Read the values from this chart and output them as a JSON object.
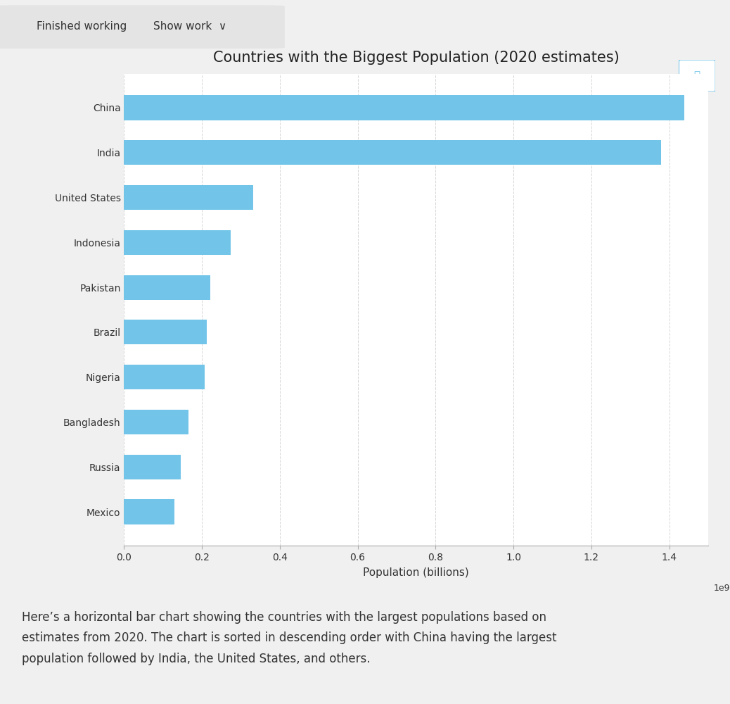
{
  "title": "Countries with the Biggest Population (2020 estimates)",
  "xlabel": "Population (billions)",
  "countries": [
    "Mexico",
    "Russia",
    "Bangladesh",
    "Nigeria",
    "Brazil",
    "Pakistan",
    "Indonesia",
    "United States",
    "India",
    "China"
  ],
  "populations": [
    128932753,
    145934462,
    164689383,
    206139589,
    212559417,
    220892340,
    273523615,
    331002651,
    1380004385,
    1439323776
  ],
  "bar_color": "#72c5e8",
  "chart_bg": "#ffffff",
  "page_bg": "#f0f0f0",
  "header_bg": "#f0f0f0",
  "header_box_bg": "#e8e8e8",
  "grid_color": "#cccccc",
  "xlim": [
    0,
    1500000000.0
  ],
  "xtick_values": [
    0.0,
    200000000.0,
    400000000.0,
    600000000.0,
    800000000.0,
    1000000000.0,
    1200000000.0,
    1400000000.0
  ],
  "title_fontsize": 15,
  "label_fontsize": 11,
  "tick_fontsize": 10,
  "header_text1": "Finished working",
  "header_text2": "Show work",
  "footer_text": "Here’s a horizontal bar chart showing the countries with the largest populations based on\nestimates from 2020. The chart is sorted in descending order with China having the largest\npopulation followed by India, the United States, and others."
}
